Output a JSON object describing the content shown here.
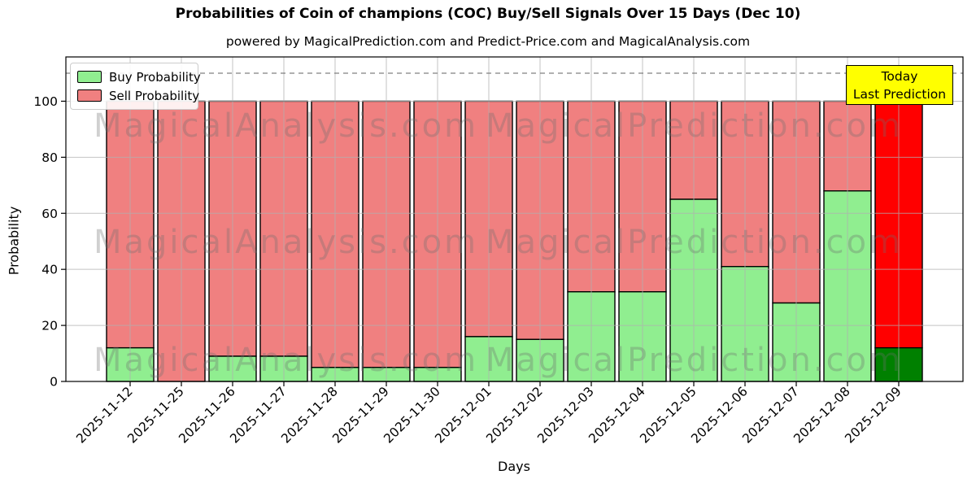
{
  "title": "Probabilities of Coin of champions (COC) Buy/Sell Signals Over 15 Days (Dec 10)",
  "subtitle": "powered by MagicalPrediction.com and Predict-Price.com and MagicalAnalysis.com",
  "chart_data": {
    "type": "bar",
    "stacked": true,
    "title": "Probabilities of Coin of champions (COC) Buy/Sell Signals Over 15 Days (Dec 10)",
    "xlabel": "Days",
    "ylabel": "Probability",
    "categories": [
      "2025-11-12",
      "2025-11-25",
      "2025-11-26",
      "2025-11-27",
      "2025-11-28",
      "2025-11-29",
      "2025-11-30",
      "2025-12-01",
      "2025-12-02",
      "2025-12-03",
      "2025-12-04",
      "2025-12-05",
      "2025-12-06",
      "2025-12-07",
      "2025-12-08",
      "2025-12-09"
    ],
    "series": [
      {
        "name": "Buy Probability",
        "color": "#90EE90",
        "values": [
          12,
          0,
          9,
          9,
          5,
          5,
          5,
          16,
          15,
          32,
          32,
          65,
          41,
          28,
          68,
          12
        ]
      },
      {
        "name": "Sell Probability",
        "color": "#F08080",
        "values": [
          88,
          100,
          91,
          91,
          95,
          95,
          95,
          84,
          85,
          68,
          68,
          35,
          59,
          72,
          32,
          88
        ]
      }
    ],
    "today_bar": {
      "index": 15,
      "buy_color": "#008000",
      "sell_color": "#FF0000"
    },
    "yticks": [
      0,
      20,
      40,
      60,
      80,
      100
    ],
    "ylim": [
      0,
      115.8
    ],
    "dashed_line_y": 110,
    "grid": true,
    "legend_position": "upper left",
    "bar_edge_color": "#000000",
    "grid_color": "#b0b0b0",
    "dashed_line_color": "#808080"
  },
  "legend": {
    "items": [
      {
        "label": "Buy Probability",
        "color": "#90EE90"
      },
      {
        "label": "Sell Probability",
        "color": "#F08080"
      }
    ]
  },
  "annotation_box": {
    "line1": "Today",
    "line2": "Last Prediction",
    "bg_color": "#FFFF00"
  },
  "watermarks": {
    "left_text": "MagicalAnalysis.com",
    "right_text": "MagicalPrediction.com"
  }
}
